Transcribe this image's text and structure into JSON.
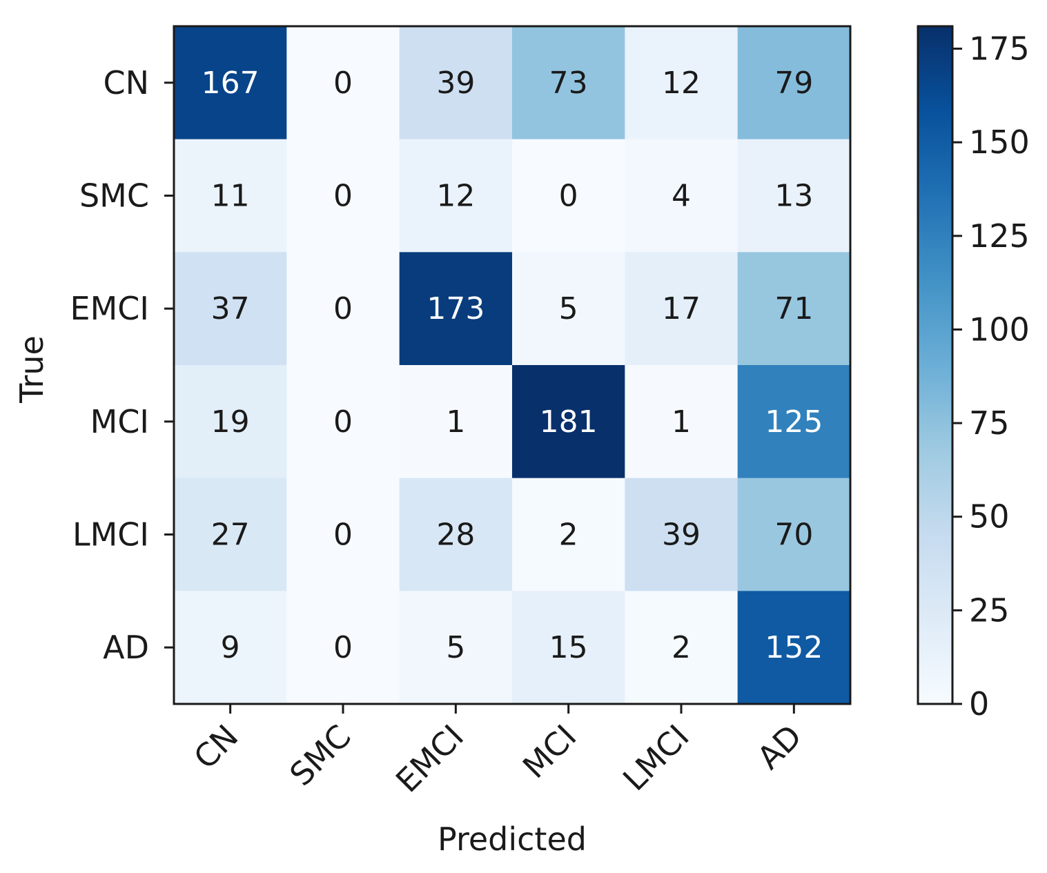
{
  "chart_data": {
    "type": "heatmap",
    "title": "",
    "xlabel": "Predicted",
    "ylabel": "True",
    "x_categories": [
      "CN",
      "SMC",
      "EMCI",
      "MCI",
      "LMCI",
      "AD"
    ],
    "y_categories": [
      "CN",
      "SMC",
      "EMCI",
      "MCI",
      "LMCI",
      "AD"
    ],
    "matrix": [
      [
        167,
        0,
        39,
        73,
        12,
        79
      ],
      [
        11,
        0,
        12,
        0,
        4,
        13
      ],
      [
        37,
        0,
        173,
        5,
        17,
        71
      ],
      [
        19,
        0,
        1,
        181,
        1,
        125
      ],
      [
        27,
        0,
        28,
        2,
        39,
        70
      ],
      [
        9,
        0,
        5,
        15,
        2,
        152
      ]
    ],
    "colormap": "Blues",
    "value_range": [
      0,
      181
    ],
    "colorbar_ticks": [
      0,
      25,
      50,
      75,
      100,
      125,
      150,
      175
    ],
    "text_threshold": 90.5,
    "colors": {
      "text_dark": "#1a1a1a",
      "text_light": "#ffffff",
      "frame": "#1a1a1a"
    }
  }
}
